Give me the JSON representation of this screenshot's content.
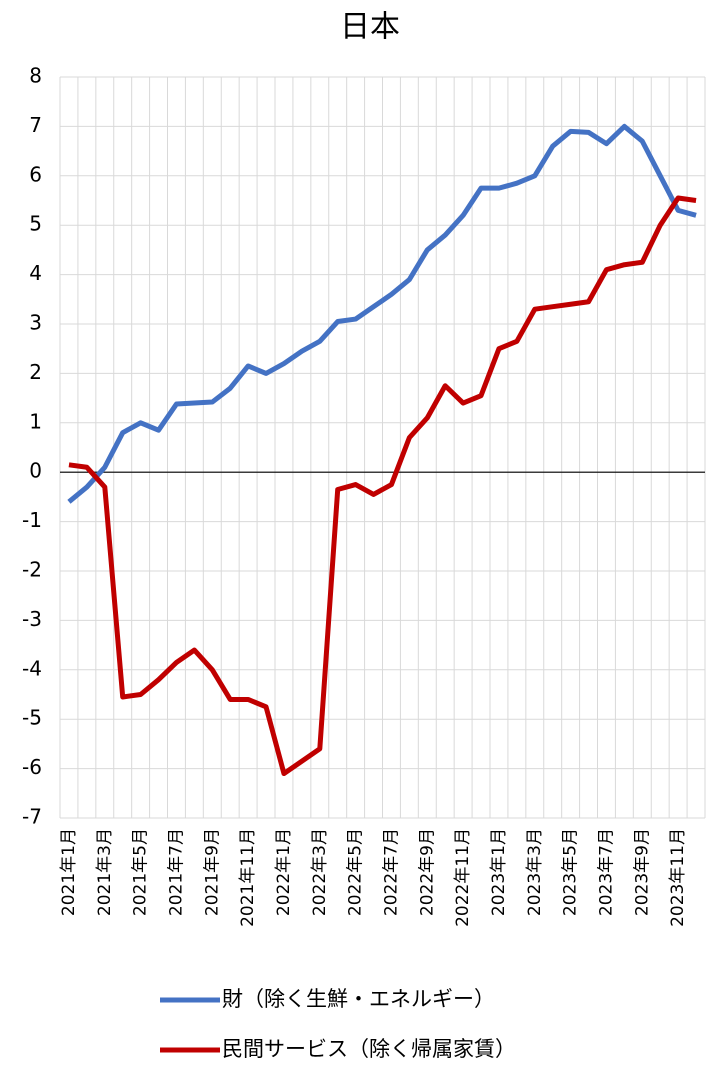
{
  "chart_data": {
    "type": "line",
    "title": "日本",
    "categories": [
      "2021年1月",
      null,
      "2021年3月",
      null,
      "2021年5月",
      null,
      "2021年7月",
      null,
      "2021年9月",
      null,
      "2021年11月",
      null,
      "2022年1月",
      null,
      "2022年3月",
      null,
      "2022年5月",
      null,
      "2022年7月",
      null,
      "2022年9月",
      null,
      "2022年11月",
      null,
      "2023年1月",
      null,
      "2023年3月",
      null,
      "2023年5月",
      null,
      "2023年7月",
      null,
      "2023年9月",
      null,
      "2023年11月",
      null
    ],
    "series": [
      {
        "name": "財（除く生鮮・エネルギー）",
        "color": "#4472c4",
        "values": [
          -0.6,
          -0.3,
          0.1,
          0.8,
          1.0,
          0.85,
          1.38,
          1.4,
          1.42,
          1.7,
          2.15,
          2.0,
          2.2,
          2.45,
          2.65,
          3.05,
          3.1,
          3.35,
          3.6,
          3.9,
          4.5,
          4.8,
          5.2,
          5.75,
          5.75,
          5.85,
          6.0,
          6.6,
          6.9,
          6.88,
          6.65,
          7.0,
          6.7,
          6.0,
          5.3,
          5.2
        ]
      },
      {
        "name": "民間サービス（除く帰属家賃）",
        "color": "#c00000",
        "values": [
          0.15,
          0.1,
          -0.3,
          -4.55,
          -4.5,
          -4.2,
          -3.85,
          -3.6,
          -4.0,
          -4.6,
          -4.6,
          -4.75,
          -6.1,
          -5.85,
          -5.6,
          -0.35,
          -0.25,
          -0.45,
          -0.25,
          0.7,
          1.1,
          1.75,
          1.4,
          1.55,
          2.5,
          2.65,
          3.3,
          3.35,
          3.4,
          3.45,
          4.1,
          4.2,
          4.25,
          5.0,
          5.55,
          5.5
        ]
      }
    ],
    "ylim": [
      -7,
      8
    ],
    "yticks": [
      -7,
      -6,
      -5,
      -4,
      -3,
      -2,
      -1,
      0,
      1,
      2,
      3,
      4,
      5,
      6,
      7,
      8
    ],
    "grid": true
  }
}
